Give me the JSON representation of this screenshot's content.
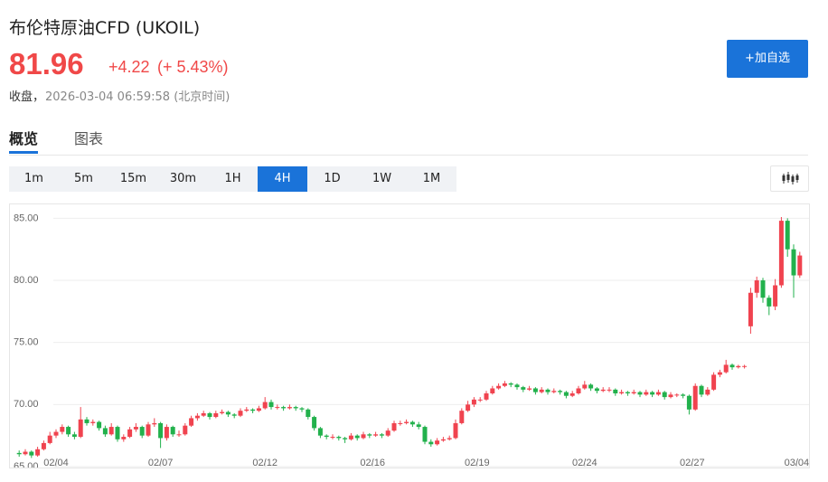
{
  "header": {
    "title": "布伦特原油CFD (UKOIL)",
    "price": "81.96",
    "change": "+4.22",
    "change_pct": "(+ 5.43%)",
    "status": "收盘，",
    "timestamp": "2026-03-04 06:59:58 (北京时间)",
    "button": "+加自选"
  },
  "tabs": [
    "概览",
    "图表"
  ],
  "intervals": [
    "1m",
    "5m",
    "15m",
    "30m",
    "1H",
    "4H",
    "1D",
    "1W",
    "1M"
  ],
  "active_interval": "4H",
  "chart_data": {
    "type": "candlestick",
    "up_color": "#f0434f",
    "down_color": "#22b14c",
    "grid": true,
    "ylim": [
      65,
      85.9
    ],
    "yticks": [
      {
        "value": 65,
        "label": "65.00"
      },
      {
        "value": 70,
        "label": "70.00"
      },
      {
        "value": 75,
        "label": "75.00"
      },
      {
        "value": 80,
        "label": "80.00"
      },
      {
        "value": 85,
        "label": "85.00"
      }
    ],
    "xlim": [
      -1.5,
      128.5
    ],
    "xticks": [
      {
        "value": 6,
        "label": "02/04"
      },
      {
        "value": 23,
        "label": "02/07"
      },
      {
        "value": 40,
        "label": "02/12"
      },
      {
        "value": 57.5,
        "label": "02/16"
      },
      {
        "value": 74.5,
        "label": "02/19"
      },
      {
        "value": 92,
        "label": "02/24"
      },
      {
        "value": 109.5,
        "label": "02/27"
      },
      {
        "value": 126.5,
        "label": "03/04"
      }
    ],
    "candles": [
      [
        66.1,
        66.3,
        65.8,
        66.0
      ],
      [
        66.0,
        66.4,
        65.9,
        66.2
      ],
      [
        66.2,
        66.3,
        65.7,
        65.9
      ],
      [
        65.9,
        66.6,
        65.8,
        66.4
      ],
      [
        66.4,
        67.1,
        66.3,
        66.9
      ],
      [
        66.9,
        67.8,
        66.8,
        67.5
      ],
      [
        67.5,
        68.0,
        67.3,
        67.8
      ],
      [
        67.8,
        68.4,
        67.6,
        68.2
      ],
      [
        68.2,
        68.3,
        67.4,
        67.6
      ],
      [
        67.6,
        67.8,
        67.2,
        67.4
      ],
      [
        67.4,
        69.8,
        67.3,
        68.8
      ],
      [
        68.8,
        69.0,
        68.3,
        68.5
      ],
      [
        68.5,
        68.8,
        68.3,
        68.6
      ],
      [
        68.6,
        68.7,
        67.9,
        68.1
      ],
      [
        68.1,
        68.3,
        67.4,
        67.6
      ],
      [
        67.6,
        68.5,
        67.5,
        68.2
      ],
      [
        68.2,
        68.3,
        67.0,
        67.2
      ],
      [
        67.2,
        67.6,
        67.0,
        67.4
      ],
      [
        67.4,
        68.2,
        67.3,
        68.0
      ],
      [
        68.0,
        68.5,
        67.8,
        68.2
      ],
      [
        68.2,
        68.3,
        67.3,
        67.5
      ],
      [
        67.5,
        68.6,
        67.4,
        68.4
      ],
      [
        68.4,
        68.9,
        68.2,
        68.5
      ],
      [
        68.5,
        68.6,
        66.5,
        67.3
      ],
      [
        67.3,
        68.4,
        67.1,
        68.2
      ],
      [
        68.2,
        68.3,
        67.4,
        67.6
      ],
      [
        67.6,
        67.9,
        67.4,
        67.6
      ],
      [
        67.6,
        68.5,
        67.5,
        68.3
      ],
      [
        68.3,
        69.1,
        68.2,
        68.9
      ],
      [
        68.9,
        69.3,
        68.7,
        69.1
      ],
      [
        69.1,
        69.5,
        69.0,
        69.3
      ],
      [
        69.3,
        69.4,
        68.8,
        69.0
      ],
      [
        69.0,
        69.5,
        68.9,
        69.3
      ],
      [
        69.3,
        69.6,
        69.2,
        69.4
      ],
      [
        69.4,
        69.5,
        69.0,
        69.2
      ],
      [
        69.2,
        69.3,
        68.9,
        69.1
      ],
      [
        69.1,
        69.7,
        69.0,
        69.5
      ],
      [
        69.5,
        69.8,
        69.4,
        69.6
      ],
      [
        69.6,
        69.7,
        69.3,
        69.5
      ],
      [
        69.5,
        69.9,
        69.4,
        69.7
      ],
      [
        69.7,
        70.6,
        69.6,
        70.2
      ],
      [
        70.2,
        70.4,
        69.6,
        69.8
      ],
      [
        69.8,
        70.0,
        69.6,
        69.8
      ],
      [
        69.8,
        69.9,
        69.5,
        69.7
      ],
      [
        69.7,
        70.0,
        69.6,
        69.8
      ],
      [
        69.8,
        69.9,
        69.5,
        69.7
      ],
      [
        69.7,
        69.8,
        69.4,
        69.6
      ],
      [
        69.6,
        69.7,
        68.8,
        69.0
      ],
      [
        69.0,
        69.1,
        67.9,
        68.1
      ],
      [
        68.1,
        68.2,
        67.3,
        67.5
      ],
      [
        67.5,
        67.6,
        67.2,
        67.4
      ],
      [
        67.4,
        67.6,
        67.2,
        67.4
      ],
      [
        67.4,
        67.5,
        67.1,
        67.3
      ],
      [
        67.3,
        67.4,
        66.9,
        67.2
      ],
      [
        67.2,
        67.7,
        67.1,
        67.5
      ],
      [
        67.5,
        67.6,
        67.1,
        67.3
      ],
      [
        67.3,
        67.8,
        67.2,
        67.6
      ],
      [
        67.6,
        67.7,
        67.3,
        67.5
      ],
      [
        67.5,
        67.8,
        67.4,
        67.6
      ],
      [
        67.6,
        67.7,
        67.3,
        67.5
      ],
      [
        67.5,
        68.1,
        67.4,
        67.9
      ],
      [
        67.9,
        68.7,
        67.8,
        68.5
      ],
      [
        68.5,
        68.7,
        68.3,
        68.5
      ],
      [
        68.5,
        68.8,
        68.4,
        68.6
      ],
      [
        68.6,
        68.7,
        68.2,
        68.4
      ],
      [
        68.4,
        68.6,
        68.0,
        68.2
      ],
      [
        68.2,
        68.3,
        66.8,
        67.0
      ],
      [
        67.0,
        67.2,
        66.6,
        66.8
      ],
      [
        66.8,
        67.3,
        66.7,
        67.1
      ],
      [
        67.1,
        67.4,
        67.0,
        67.2
      ],
      [
        67.2,
        67.5,
        67.1,
        67.3
      ],
      [
        67.3,
        68.8,
        67.2,
        68.5
      ],
      [
        68.5,
        69.7,
        68.4,
        69.5
      ],
      [
        69.5,
        70.3,
        69.4,
        70.0
      ],
      [
        70.0,
        70.6,
        69.8,
        70.4
      ],
      [
        70.4,
        70.6,
        70.2,
        70.4
      ],
      [
        70.4,
        71.1,
        70.3,
        70.9
      ],
      [
        70.9,
        71.5,
        70.8,
        71.3
      ],
      [
        71.3,
        71.7,
        71.2,
        71.5
      ],
      [
        71.5,
        71.9,
        71.4,
        71.7
      ],
      [
        71.7,
        71.8,
        71.4,
        71.6
      ],
      [
        71.6,
        71.7,
        71.2,
        71.4
      ],
      [
        71.4,
        71.5,
        71.0,
        71.2
      ],
      [
        71.2,
        71.5,
        71.1,
        71.3
      ],
      [
        71.3,
        71.4,
        70.8,
        71.0
      ],
      [
        71.0,
        71.4,
        70.9,
        71.2
      ],
      [
        71.2,
        71.3,
        70.8,
        71.0
      ],
      [
        71.0,
        71.3,
        70.9,
        71.1
      ],
      [
        71.1,
        71.2,
        70.8,
        71.0
      ],
      [
        71.0,
        71.1,
        70.5,
        70.7
      ],
      [
        70.7,
        71.1,
        70.6,
        70.9
      ],
      [
        70.9,
        71.5,
        70.8,
        71.3
      ],
      [
        71.3,
        71.9,
        71.2,
        71.6
      ],
      [
        71.6,
        71.7,
        71.1,
        71.3
      ],
      [
        71.3,
        71.4,
        70.9,
        71.1
      ],
      [
        71.1,
        71.4,
        71.0,
        71.2
      ],
      [
        71.2,
        71.4,
        71.0,
        71.2
      ],
      [
        71.2,
        71.3,
        70.7,
        70.9
      ],
      [
        70.9,
        71.2,
        70.8,
        71.0
      ],
      [
        71.0,
        71.1,
        70.7,
        70.9
      ],
      [
        70.9,
        71.2,
        70.8,
        71.0
      ],
      [
        71.0,
        71.1,
        70.6,
        70.8
      ],
      [
        70.8,
        71.2,
        70.7,
        71.0
      ],
      [
        71.0,
        71.1,
        70.6,
        70.8
      ],
      [
        70.8,
        71.2,
        70.7,
        71.0
      ],
      [
        71.0,
        71.1,
        70.4,
        70.6
      ],
      [
        70.6,
        71.0,
        70.5,
        70.8
      ],
      [
        70.8,
        70.9,
        70.6,
        70.8
      ],
      [
        70.8,
        70.9,
        70.5,
        70.7
      ],
      [
        70.7,
        70.8,
        69.2,
        69.6
      ],
      [
        69.6,
        71.7,
        69.5,
        71.5
      ],
      [
        71.5,
        71.6,
        70.6,
        70.8
      ],
      [
        70.8,
        71.4,
        70.7,
        71.2
      ],
      [
        71.2,
        72.6,
        71.1,
        72.4
      ],
      [
        72.4,
        72.8,
        72.2,
        72.6
      ],
      [
        72.6,
        73.6,
        72.5,
        73.2
      ],
      [
        73.2,
        73.3,
        72.8,
        73.0
      ],
      [
        73.0,
        73.2,
        72.9,
        73.1
      ],
      [
        73.1,
        73.2,
        72.9,
        73.1
      ],
      [
        76.3,
        79.4,
        75.7,
        79.0
      ],
      [
        79.0,
        80.3,
        78.6,
        80.0
      ],
      [
        80.0,
        80.2,
        78.2,
        78.6
      ],
      [
        78.6,
        78.8,
        77.2,
        77.9
      ],
      [
        77.9,
        80.1,
        77.6,
        79.6
      ],
      [
        79.6,
        85.1,
        79.4,
        84.8
      ],
      [
        84.8,
        85.0,
        81.9,
        82.5
      ],
      [
        82.5,
        82.9,
        78.6,
        80.4
      ],
      [
        80.4,
        82.3,
        80.2,
        82.0
      ]
    ]
  }
}
